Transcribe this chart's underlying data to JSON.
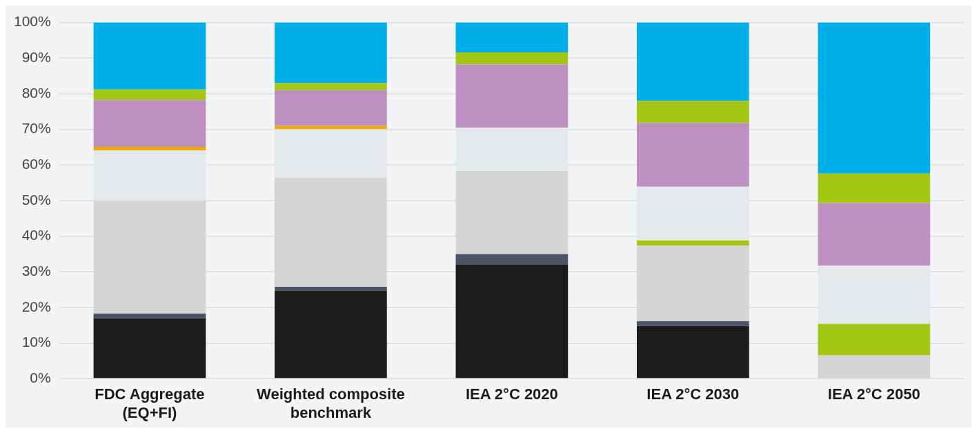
{
  "chart_data": {
    "type": "bar",
    "stacked": true,
    "categories": [
      "FDC Aggregate (EQ+FI)",
      "Weighted composite benchmark",
      "IEA 2°C 2020",
      "IEA 2°C 2030",
      "IEA 2°C 2050"
    ],
    "series": [
      {
        "color": "#1c1c1c",
        "values": [
          17,
          24.7,
          32,
          14.8,
          0
        ]
      },
      {
        "color": "#4c5567",
        "values": [
          1.3,
          1.1,
          3,
          1.3,
          0
        ]
      },
      {
        "color": "#d5d5d5",
        "values": [
          31.7,
          30.6,
          23.3,
          21.2,
          6.5
        ]
      },
      {
        "color": "#a4c615",
        "values": [
          0,
          0,
          0,
          1.5,
          8.9
        ]
      },
      {
        "color": "#e4e9eb",
        "values": [
          14.1,
          13.6,
          12.2,
          15.1,
          16.3
        ]
      },
      {
        "color": "#f5a800",
        "values": [
          1,
          1,
          0,
          0,
          0
        ]
      },
      {
        "color": "#bd90c1",
        "values": [
          13.1,
          10,
          17.7,
          17.9,
          17.6
        ]
      },
      {
        "color": "#a4c615",
        "values": [
          3,
          2,
          3.4,
          6.2,
          8.3
        ]
      },
      {
        "color": "#00aeea",
        "values": [
          18.8,
          17,
          8.4,
          22,
          42.4
        ]
      }
    ],
    "ylim": [
      0,
      100
    ],
    "yticks": [
      {
        "value": 0,
        "label": "0%"
      },
      {
        "value": 10,
        "label": "10%"
      },
      {
        "value": 20,
        "label": "20%"
      },
      {
        "value": 30,
        "label": "30%"
      },
      {
        "value": 40,
        "label": "40%"
      },
      {
        "value": 50,
        "label": "50%"
      },
      {
        "value": 60,
        "label": "60%"
      },
      {
        "value": 70,
        "label": "70%"
      },
      {
        "value": 80,
        "label": "80%"
      },
      {
        "value": 90,
        "label": "90%"
      },
      {
        "value": 100,
        "label": "100%"
      }
    ],
    "grid": "y",
    "legend": false
  }
}
